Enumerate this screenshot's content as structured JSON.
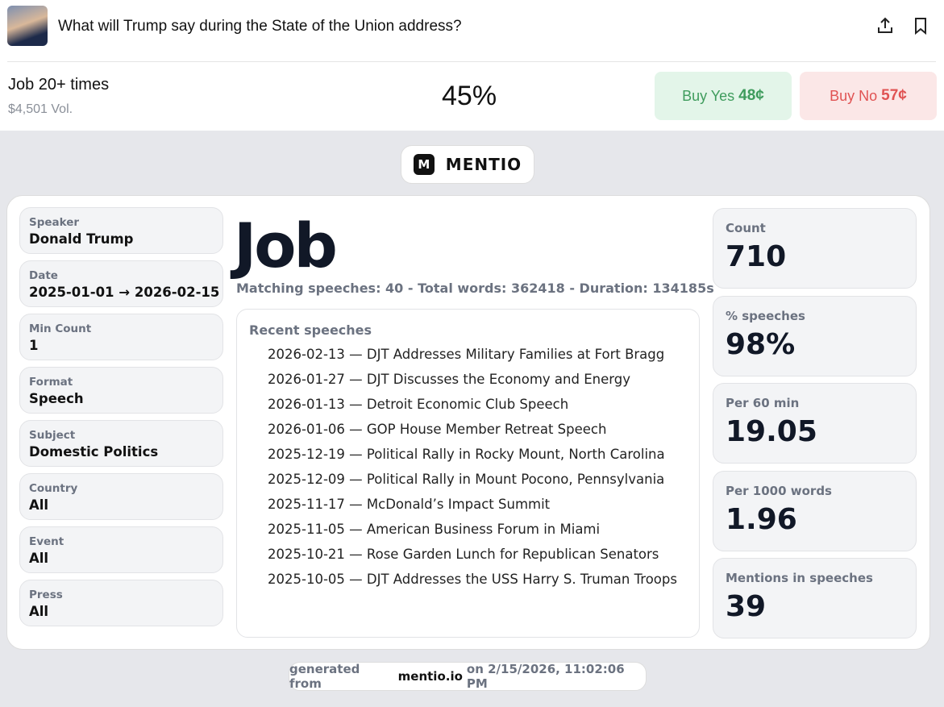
{
  "header": {
    "title": "What will Trump say during the State of the Union address?"
  },
  "market": {
    "outcome": "Job 20+ times",
    "volume": "$4,501 Vol.",
    "chance": "45%",
    "buy_yes": {
      "label": "Buy Yes",
      "price": "48¢"
    },
    "buy_no": {
      "label": "Buy No",
      "price": "57¢"
    }
  },
  "card": {
    "logo_letter": "M",
    "brand": "MENTIO",
    "filters": [
      {
        "label": "Speaker",
        "value": "Donald Trump"
      },
      {
        "label": "Date",
        "value": "2025-01-01 → 2026-02-15"
      },
      {
        "label": "Min Count",
        "value": "1"
      },
      {
        "label": "Format",
        "value": "Speech"
      },
      {
        "label": "Subject",
        "value": "Domestic Politics"
      },
      {
        "label": "Country",
        "value": "All"
      },
      {
        "label": "Event",
        "value": "All"
      },
      {
        "label": "Press",
        "value": "All"
      }
    ],
    "word": "Job",
    "summary": "Matching speeches: 40 - Total words: 362418 - Duration: 134185s",
    "recent": {
      "title": "Recent speeches",
      "items": [
        "2026-02-13 — DJT Addresses Military Families at Fort Bragg",
        "2026-01-27 — DJT Discusses the Economy and Energy",
        "2026-01-13 — Detroit Economic Club Speech",
        "2026-01-06 — GOP House Member Retreat Speech",
        "2025-12-19 — Political Rally in Rocky Mount, North Carolina",
        "2025-12-09 — Political Rally in Mount Pocono, Pennsylvania",
        "2025-11-17 — McDonald’s Impact Summit",
        "2025-11-05 — American Business Forum in Miami",
        "2025-10-21 — Rose Garden Lunch for Republican Senators",
        "2025-10-05 — DJT Addresses the USS Harry S. Truman Troops"
      ]
    },
    "stats": [
      {
        "label": "Count",
        "value": "710"
      },
      {
        "label": "% speeches",
        "value": "98%"
      },
      {
        "label": "Per 60 min",
        "value": "19.05"
      },
      {
        "label": "Per 1000 words",
        "value": "1.96"
      },
      {
        "label": "Mentions in speeches",
        "value": "39"
      }
    ],
    "footer": {
      "prefix": "generated from",
      "site": "mentio.io",
      "suffix": "on 2/15/2026, 11:02:06 PM"
    }
  }
}
